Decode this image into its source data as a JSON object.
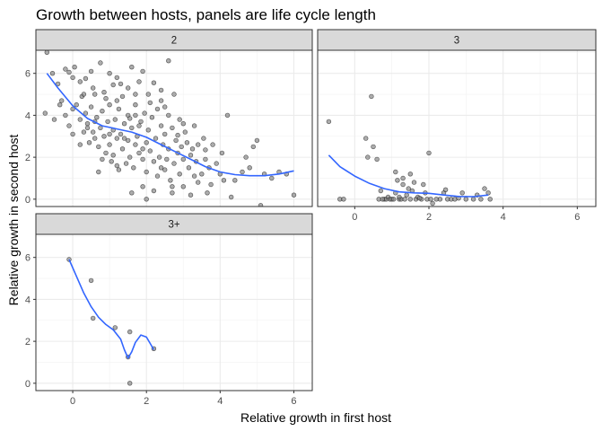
{
  "chart_data": {
    "type": "scatter",
    "title": "Growth between hosts, panels are life cycle length",
    "xlabel": "Relative growth in first host",
    "ylabel": "Relative growth in second host",
    "xlim": [
      -1,
      6.5
    ],
    "ylim": [
      -0.35,
      7.1
    ],
    "x_ticks": [
      0,
      2,
      4,
      6
    ],
    "y_ticks": [
      0,
      2,
      4,
      6
    ],
    "grid": true,
    "point_color": "#7f7f7f",
    "smooth_color": "#3366ff",
    "panels": [
      {
        "label": "2",
        "points": [
          [
            -0.7,
            7.0
          ],
          [
            -0.55,
            6.0
          ],
          [
            -0.4,
            5.5
          ],
          [
            -0.2,
            6.2
          ],
          [
            -0.1,
            6.05
          ],
          [
            0.0,
            5.8
          ],
          [
            0.05,
            6.3
          ],
          [
            0.2,
            5.6
          ],
          [
            0.25,
            4.9
          ],
          [
            0.35,
            5.75
          ],
          [
            0.5,
            6.1
          ],
          [
            0.55,
            5.3
          ],
          [
            0.6,
            5.0
          ],
          [
            0.75,
            6.5
          ],
          [
            0.85,
            5.1
          ],
          [
            1.0,
            6.0
          ],
          [
            1.1,
            5.45
          ],
          [
            1.2,
            5.8
          ],
          [
            1.35,
            4.9
          ],
          [
            1.5,
            5.3
          ],
          [
            1.6,
            6.3
          ],
          [
            1.7,
            5.0
          ],
          [
            1.8,
            5.6
          ],
          [
            1.9,
            6.1
          ],
          [
            2.05,
            5.0
          ],
          [
            2.2,
            5.55
          ],
          [
            2.4,
            4.7
          ],
          [
            2.6,
            6.6
          ],
          [
            2.75,
            5.0
          ],
          [
            -0.75,
            4.1
          ],
          [
            -0.5,
            3.8
          ],
          [
            -0.35,
            4.5
          ],
          [
            -0.2,
            4.0
          ],
          [
            -0.1,
            3.5
          ],
          [
            0.0,
            3.1
          ],
          [
            0.1,
            4.5
          ],
          [
            0.2,
            3.8
          ],
          [
            0.2,
            2.6
          ],
          [
            0.3,
            3.2
          ],
          [
            0.35,
            4.1
          ],
          [
            0.4,
            3.6
          ],
          [
            0.45,
            2.7
          ],
          [
            0.5,
            4.4
          ],
          [
            0.55,
            3.2
          ],
          [
            0.6,
            2.9
          ],
          [
            0.65,
            3.9
          ],
          [
            0.7,
            2.5
          ],
          [
            0.75,
            3.4
          ],
          [
            0.8,
            4.2
          ],
          [
            0.8,
            1.9
          ],
          [
            0.85,
            3.0
          ],
          [
            0.9,
            2.2
          ],
          [
            0.95,
            3.7
          ],
          [
            1.0,
            2.6
          ],
          [
            1.0,
            4.5
          ],
          [
            1.05,
            1.8
          ],
          [
            1.1,
            3.3
          ],
          [
            1.1,
            2.1
          ],
          [
            1.15,
            3.8
          ],
          [
            1.2,
            2.9
          ],
          [
            1.25,
            1.4
          ],
          [
            1.25,
            4.3
          ],
          [
            1.3,
            3.1
          ],
          [
            1.35,
            2.4
          ],
          [
            1.4,
            3.6
          ],
          [
            1.45,
            1.7
          ],
          [
            1.5,
            4.0
          ],
          [
            1.5,
            2.8
          ],
          [
            1.55,
            2.0
          ],
          [
            1.6,
            3.4
          ],
          [
            1.65,
            1.5
          ],
          [
            1.7,
            4.5
          ],
          [
            1.7,
            2.6
          ],
          [
            1.75,
            3.0
          ],
          [
            1.8,
            2.2
          ],
          [
            1.85,
            3.7
          ],
          [
            1.9,
            1.9
          ],
          [
            1.95,
            4.1
          ],
          [
            2.0,
            2.7
          ],
          [
            2.0,
            1.3
          ],
          [
            2.05,
            3.3
          ],
          [
            2.1,
            2.3
          ],
          [
            2.15,
            3.9
          ],
          [
            2.2,
            1.8
          ],
          [
            2.25,
            2.9
          ],
          [
            2.3,
            4.3
          ],
          [
            2.35,
            2.0
          ],
          [
            2.4,
            3.5
          ],
          [
            2.4,
            1.5
          ],
          [
            2.45,
            2.6
          ],
          [
            2.5,
            3.1
          ],
          [
            2.55,
            1.9
          ],
          [
            2.6,
            4.0
          ],
          [
            2.6,
            2.4
          ],
          [
            2.65,
            0.9
          ],
          [
            2.7,
            3.4
          ],
          [
            2.75,
            1.7
          ],
          [
            2.8,
            2.8
          ],
          [
            2.85,
            2.2
          ],
          [
            2.9,
            3.8
          ],
          [
            2.9,
            1.2
          ],
          [
            2.95,
            2.5
          ],
          [
            3.0,
            1.9
          ],
          [
            3.05,
            3.2
          ],
          [
            3.1,
            2.7
          ],
          [
            3.15,
            1.5
          ],
          [
            3.2,
            2.1
          ],
          [
            3.3,
            3.5
          ],
          [
            3.35,
            1.8
          ],
          [
            3.4,
            2.6
          ],
          [
            3.5,
            1.2
          ],
          [
            3.55,
            2.9
          ],
          [
            3.6,
            1.9
          ],
          [
            3.7,
            1.5
          ],
          [
            3.75,
            0.7
          ],
          [
            3.8,
            2.6
          ],
          [
            3.9,
            1.7
          ],
          [
            4.0,
            1.2
          ],
          [
            4.1,
            0.9
          ],
          [
            1.0,
            3.1
          ],
          [
            1.4,
            2.9
          ],
          [
            1.8,
            3.5
          ],
          [
            2.1,
            4.6
          ],
          [
            2.5,
            4.4
          ],
          [
            0.6,
            3.7
          ],
          [
            1.2,
            4.7
          ],
          [
            3.0,
            3.6
          ],
          [
            2.3,
            1.1
          ],
          [
            1.9,
            0.6
          ],
          [
            2.7,
            0.3
          ],
          [
            3.2,
            0.2
          ],
          [
            3.4,
            0.8
          ],
          [
            1.6,
            0.3
          ],
          [
            2.2,
            0.4
          ],
          [
            2.0,
            0.0
          ],
          [
            4.3,
            0.1
          ],
          [
            4.4,
            0.9
          ],
          [
            4.6,
            1.3
          ],
          [
            4.9,
            2.5
          ],
          [
            5.0,
            2.8
          ],
          [
            5.2,
            1.2
          ],
          [
            5.1,
            -0.3
          ],
          [
            4.8,
            1.5
          ],
          [
            5.6,
            1.3
          ],
          [
            5.8,
            1.2
          ],
          [
            6.0,
            0.2
          ],
          [
            4.2,
            4.0
          ],
          [
            4.7,
            2.0
          ],
          [
            5.4,
            1.0
          ],
          [
            0.3,
            5.0
          ],
          [
            0.9,
            4.8
          ],
          [
            1.3,
            5.5
          ],
          [
            1.7,
            4.0
          ],
          [
            2.4,
            5.2
          ],
          [
            -0.3,
            4.7
          ],
          [
            0.0,
            4.3
          ],
          [
            0.4,
            3.4
          ],
          [
            1.55,
            3.85
          ],
          [
            2.85,
            3.05
          ],
          [
            3.25,
            2.4
          ],
          [
            3.6,
            2.35
          ],
          [
            3.65,
            0.3
          ],
          [
            4.05,
            2.2
          ],
          [
            2.5,
            1.4
          ],
          [
            1.2,
            1.6
          ],
          [
            0.7,
            1.3
          ],
          [
            1.9,
            2.4
          ],
          [
            2.7,
            0.6
          ],
          [
            3.0,
            0.6
          ],
          [
            3.3,
            1.1
          ]
        ],
        "smooth": [
          [
            -0.7,
            6.0
          ],
          [
            -0.4,
            5.3
          ],
          [
            0.0,
            4.45
          ],
          [
            0.4,
            3.85
          ],
          [
            0.8,
            3.5
          ],
          [
            1.2,
            3.35
          ],
          [
            1.6,
            3.2
          ],
          [
            2.0,
            2.95
          ],
          [
            2.4,
            2.6
          ],
          [
            2.8,
            2.25
          ],
          [
            3.2,
            1.9
          ],
          [
            3.6,
            1.55
          ],
          [
            4.0,
            1.3
          ],
          [
            4.4,
            1.17
          ],
          [
            4.8,
            1.12
          ],
          [
            5.2,
            1.12
          ],
          [
            5.6,
            1.2
          ],
          [
            6.0,
            1.35
          ]
        ]
      },
      {
        "label": "3",
        "points": [
          [
            -0.7,
            3.7
          ],
          [
            -0.4,
            0.0
          ],
          [
            -0.3,
            0.0
          ],
          [
            0.3,
            2.9
          ],
          [
            0.35,
            2.0
          ],
          [
            0.45,
            4.9
          ],
          [
            0.5,
            2.5
          ],
          [
            0.6,
            1.9
          ],
          [
            0.65,
            0.0
          ],
          [
            0.7,
            0.4
          ],
          [
            0.8,
            0.0
          ],
          [
            0.85,
            0.0
          ],
          [
            0.9,
            0.1
          ],
          [
            0.95,
            0.0
          ],
          [
            1.0,
            0.0
          ],
          [
            1.05,
            0.0
          ],
          [
            1.1,
            0.3
          ],
          [
            1.1,
            1.3
          ],
          [
            1.15,
            0.9
          ],
          [
            1.2,
            0.0
          ],
          [
            1.25,
            0.0
          ],
          [
            1.3,
            0.7
          ],
          [
            1.35,
            0.0
          ],
          [
            1.4,
            0.2
          ],
          [
            1.45,
            0.5
          ],
          [
            1.5,
            0.0
          ],
          [
            1.55,
            0.4
          ],
          [
            1.6,
            0.8
          ],
          [
            1.65,
            0.0
          ],
          [
            1.7,
            0.1
          ],
          [
            1.8,
            0.0
          ],
          [
            1.85,
            0.7
          ],
          [
            1.9,
            0.3
          ],
          [
            1.95,
            0.0
          ],
          [
            2.0,
            2.2
          ],
          [
            2.05,
            0.0
          ],
          [
            2.1,
            -0.2
          ],
          [
            2.2,
            0.0
          ],
          [
            2.3,
            0.0
          ],
          [
            2.4,
            0.3
          ],
          [
            2.5,
            0.0
          ],
          [
            2.6,
            0.0
          ],
          [
            2.7,
            0.0
          ],
          [
            2.9,
            0.3
          ],
          [
            3.0,
            0.0
          ],
          [
            3.2,
            0.0
          ],
          [
            3.4,
            0.0
          ],
          [
            3.5,
            0.5
          ],
          [
            3.6,
            0.3
          ],
          [
            3.65,
            0.0
          ],
          [
            1.3,
            1.0
          ],
          [
            1.5,
            1.2
          ],
          [
            1.2,
            0.1
          ],
          [
            1.75,
            0.05
          ],
          [
            2.45,
            0.45
          ],
          [
            2.8,
            0.05
          ],
          [
            3.3,
            0.2
          ],
          [
            0.75,
            0.0
          ]
        ],
        "smooth": [
          [
            -0.7,
            2.1
          ],
          [
            -0.4,
            1.55
          ],
          [
            0.0,
            1.1
          ],
          [
            0.4,
            0.75
          ],
          [
            0.8,
            0.5
          ],
          [
            1.2,
            0.35
          ],
          [
            1.6,
            0.3
          ],
          [
            2.0,
            0.28
          ],
          [
            2.4,
            0.2
          ],
          [
            2.8,
            0.13
          ],
          [
            3.2,
            0.12
          ],
          [
            3.6,
            0.2
          ]
        ]
      },
      {
        "label": "3+",
        "points": [
          [
            -0.1,
            5.9
          ],
          [
            0.5,
            4.9
          ],
          [
            0.55,
            3.1
          ],
          [
            1.15,
            2.65
          ],
          [
            1.5,
            1.25
          ],
          [
            1.55,
            2.45
          ],
          [
            1.55,
            0.0
          ],
          [
            2.2,
            1.65
          ]
        ],
        "smooth": [
          [
            -0.1,
            5.9
          ],
          [
            0.1,
            5.1
          ],
          [
            0.3,
            4.3
          ],
          [
            0.5,
            3.65
          ],
          [
            0.7,
            3.15
          ],
          [
            0.9,
            2.8
          ],
          [
            1.1,
            2.55
          ],
          [
            1.3,
            2.1
          ],
          [
            1.4,
            1.6
          ],
          [
            1.5,
            1.2
          ],
          [
            1.6,
            1.5
          ],
          [
            1.7,
            1.95
          ],
          [
            1.85,
            2.3
          ],
          [
            2.0,
            2.2
          ],
          [
            2.1,
            1.9
          ],
          [
            2.2,
            1.6
          ]
        ]
      }
    ]
  }
}
